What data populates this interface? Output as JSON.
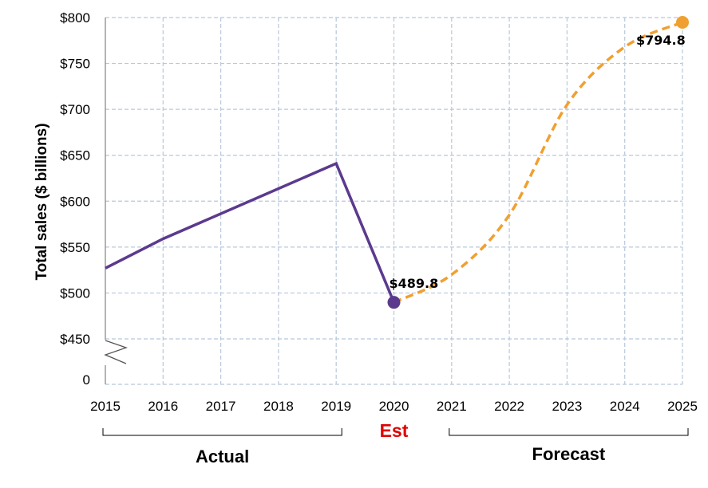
{
  "chart_data": {
    "type": "line",
    "ylabel": "Total sales ($ billions)",
    "x": [
      2015,
      2016,
      2017,
      2018,
      2019,
      2020,
      2021,
      2022,
      2023,
      2024,
      2025
    ],
    "xticks": [
      "2015",
      "2016",
      "2017",
      "2018",
      "2019",
      "2020",
      "2021",
      "2022",
      "2023",
      "2024",
      "2025"
    ],
    "ylim": [
      450,
      800
    ],
    "yticks": [
      450,
      500,
      550,
      600,
      650,
      700,
      750,
      800
    ],
    "ytick_labels": [
      "$450",
      "$500",
      "$550",
      "$600",
      "$650",
      "$700",
      "$750",
      "$800"
    ],
    "zero_label": "0",
    "axis_break": true,
    "grid": true,
    "series": [
      {
        "name": "Actual",
        "style": "solid",
        "color": "#5b3a8e",
        "x": [
          2015,
          2016,
          2019,
          2020
        ],
        "values": [
          527,
          559,
          641,
          489.8
        ]
      },
      {
        "name": "Forecast",
        "style": "dashed",
        "color": "#f0a030",
        "x": [
          2020,
          2021,
          2022,
          2023,
          2024,
          2025
        ],
        "values": [
          489.8,
          520,
          585,
          705,
          768,
          794.8
        ]
      }
    ],
    "data_labels": [
      {
        "x": 2020,
        "value": 489.8,
        "text": "$489.8",
        "color": "#5b3a8e"
      },
      {
        "x": 2025,
        "value": 794.8,
        "text": "$794.8",
        "color": "#f0a030"
      }
    ],
    "groups": [
      {
        "label": "Actual",
        "from": 2015,
        "to": 2019
      },
      {
        "label": "Est",
        "at": 2020,
        "color": "#e00000"
      },
      {
        "label": "Forecast",
        "from": 2021,
        "to": 2025
      }
    ],
    "colors": {
      "grid": "#b8c8dc",
      "axis": "#8a8a8a"
    }
  }
}
